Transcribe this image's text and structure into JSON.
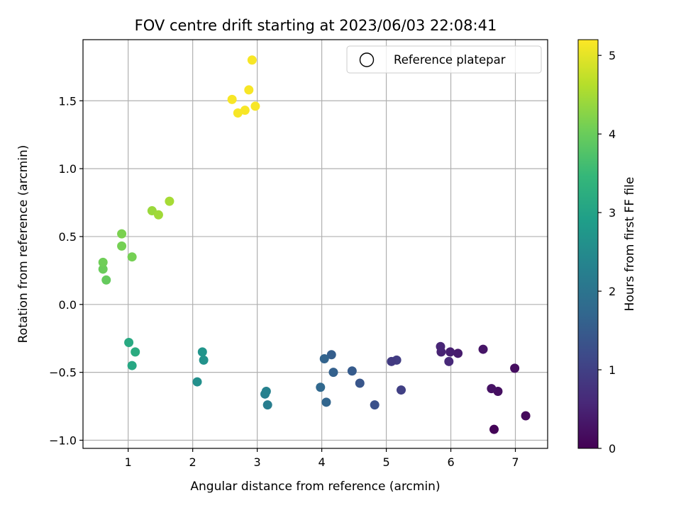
{
  "chart_data": {
    "type": "scatter",
    "title": "FOV centre drift starting at 2023/06/03 22:08:41",
    "xlabel": "Angular distance from reference (arcmin)",
    "ylabel": "Rotation from reference (arcmin)",
    "xlim": [
      0.3,
      7.5
    ],
    "ylim": [
      -1.06,
      1.95
    ],
    "xticks": [
      "1",
      "2",
      "3",
      "4",
      "5",
      "6",
      "7"
    ],
    "xtick_values": [
      1,
      2,
      3,
      4,
      5,
      6,
      7
    ],
    "yticks": [
      "1.5",
      "1.0",
      "0.5",
      "0.0",
      "−0.5",
      "−1.0"
    ],
    "ytick_values": [
      1.5,
      1.0,
      0.5,
      0.0,
      -0.5,
      -1.0
    ],
    "grid": true,
    "legend": {
      "label": "Reference platepar",
      "marker": "open-circle",
      "placement": "top-right"
    },
    "colorbar": {
      "label": "Hours from first FF file",
      "colormap": "viridis",
      "range": [
        0,
        5.2
      ],
      "ticks": [
        "0",
        "1",
        "2",
        "3",
        "4",
        "5"
      ],
      "tick_values": [
        0,
        1,
        2,
        3,
        4,
        5
      ]
    },
    "points": [
      {
        "x": 6.67,
        "y": -0.92,
        "c": 0.05
      },
      {
        "x": 7.16,
        "y": -0.82,
        "c": 0.12
      },
      {
        "x": 6.73,
        "y": -0.64,
        "c": 0.2
      },
      {
        "x": 6.63,
        "y": -0.62,
        "c": 0.25
      },
      {
        "x": 6.99,
        "y": -0.47,
        "c": 0.18
      },
      {
        "x": 6.5,
        "y": -0.33,
        "c": 0.3
      },
      {
        "x": 6.11,
        "y": -0.36,
        "c": 0.4
      },
      {
        "x": 5.99,
        "y": -0.35,
        "c": 0.45
      },
      {
        "x": 5.85,
        "y": -0.35,
        "c": 0.5
      },
      {
        "x": 5.84,
        "y": -0.31,
        "c": 0.55
      },
      {
        "x": 5.97,
        "y": -0.42,
        "c": 0.6
      },
      {
        "x": 5.23,
        "y": -0.63,
        "c": 1.0
      },
      {
        "x": 5.16,
        "y": -0.41,
        "c": 0.95
      },
      {
        "x": 5.08,
        "y": -0.42,
        "c": 0.9
      },
      {
        "x": 4.82,
        "y": -0.74,
        "c": 1.3
      },
      {
        "x": 4.59,
        "y": -0.58,
        "c": 1.4
      },
      {
        "x": 4.47,
        "y": -0.49,
        "c": 1.5
      },
      {
        "x": 4.18,
        "y": -0.5,
        "c": 1.6
      },
      {
        "x": 4.15,
        "y": -0.37,
        "c": 1.55
      },
      {
        "x": 4.04,
        "y": -0.4,
        "c": 1.65
      },
      {
        "x": 4.07,
        "y": -0.72,
        "c": 1.7
      },
      {
        "x": 3.98,
        "y": -0.61,
        "c": 1.75
      },
      {
        "x": 3.16,
        "y": -0.74,
        "c": 2.2
      },
      {
        "x": 3.12,
        "y": -0.66,
        "c": 2.25
      },
      {
        "x": 3.14,
        "y": -0.64,
        "c": 2.3
      },
      {
        "x": 2.07,
        "y": -0.57,
        "c": 2.6
      },
      {
        "x": 2.17,
        "y": -0.41,
        "c": 2.65
      },
      {
        "x": 2.15,
        "y": -0.35,
        "c": 2.7
      },
      {
        "x": 1.06,
        "y": -0.45,
        "c": 3.1
      },
      {
        "x": 1.01,
        "y": -0.28,
        "c": 3.15
      },
      {
        "x": 1.11,
        "y": -0.35,
        "c": 3.2
      },
      {
        "x": 0.66,
        "y": 0.18,
        "c": 3.95
      },
      {
        "x": 0.61,
        "y": 0.26,
        "c": 4.0
      },
      {
        "x": 0.61,
        "y": 0.31,
        "c": 4.05
      },
      {
        "x": 0.9,
        "y": 0.43,
        "c": 4.1
      },
      {
        "x": 1.06,
        "y": 0.35,
        "c": 4.1
      },
      {
        "x": 0.9,
        "y": 0.52,
        "c": 4.15
      },
      {
        "x": 1.37,
        "y": 0.69,
        "c": 4.4
      },
      {
        "x": 1.47,
        "y": 0.66,
        "c": 4.45
      },
      {
        "x": 1.64,
        "y": 0.76,
        "c": 4.5
      },
      {
        "x": 2.61,
        "y": 1.51,
        "c": 5.15
      },
      {
        "x": 2.7,
        "y": 1.41,
        "c": 5.15
      },
      {
        "x": 2.81,
        "y": 1.43,
        "c": 5.15
      },
      {
        "x": 2.97,
        "y": 1.46,
        "c": 5.15
      },
      {
        "x": 2.87,
        "y": 1.58,
        "c": 5.15
      },
      {
        "x": 2.92,
        "y": 1.8,
        "c": 5.15
      }
    ]
  }
}
